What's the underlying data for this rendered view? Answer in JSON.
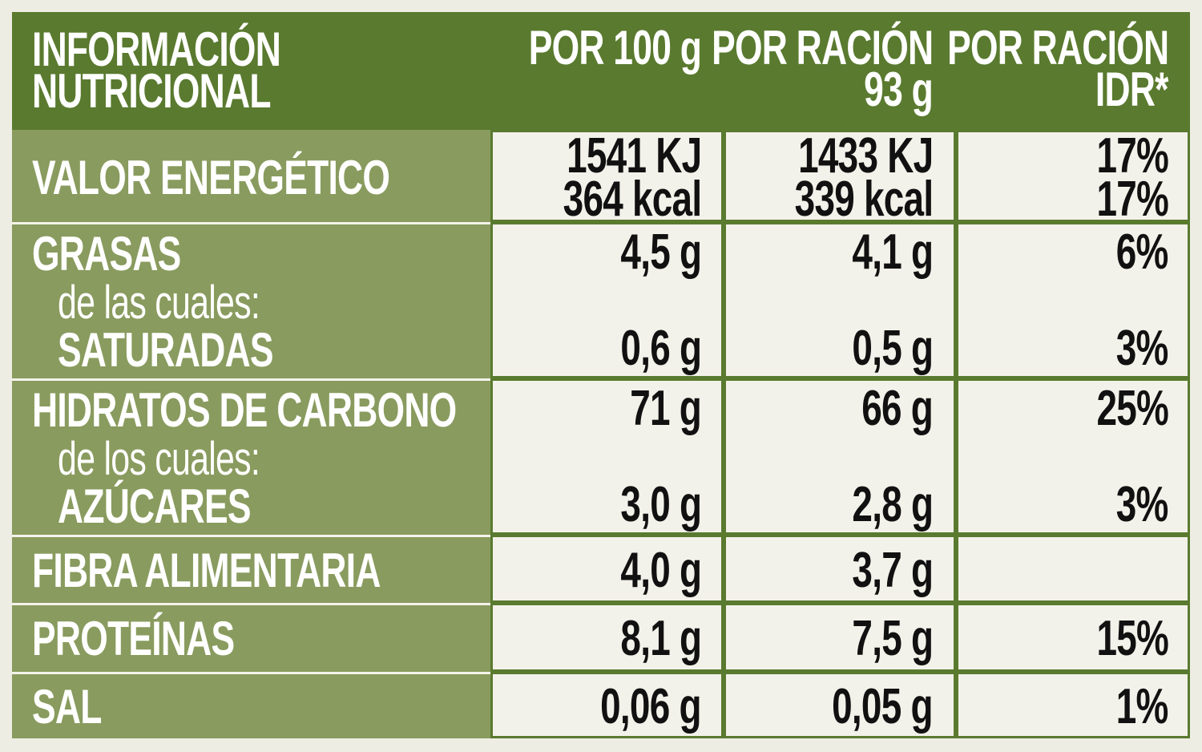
{
  "header": {
    "title": [
      "INFORMACIÓN",
      "NUTRICIONAL"
    ],
    "columns": [
      [
        "POR 100 g"
      ],
      [
        "POR RACIÓN",
        "93 g"
      ],
      [
        "POR RACIÓN",
        "IDR*"
      ]
    ]
  },
  "rows": [
    {
      "label": "VALOR ENERGÉTICO",
      "values": [
        [
          "1541 KJ",
          "364 kcal"
        ],
        [
          "1433 KJ",
          "339 kcal"
        ],
        [
          "17%",
          "17%"
        ]
      ]
    },
    {
      "label": "GRASAS",
      "values": [
        [
          "4,5 g"
        ],
        [
          "4,1 g"
        ],
        [
          "6%"
        ]
      ],
      "sub": {
        "intro": "de las cuales:",
        "label": "SATURADAS",
        "values": [
          "0,6 g",
          "0,5 g",
          "3%"
        ]
      }
    },
    {
      "label": "HIDRATOS DE CARBONO",
      "values": [
        [
          "71 g"
        ],
        [
          "66 g"
        ],
        [
          "25%"
        ]
      ],
      "sub": {
        "intro": "de los cuales:",
        "label": "AZÚCARES",
        "values": [
          "3,0 g",
          "2,8 g",
          "3%"
        ]
      }
    },
    {
      "label": "FIBRA ALIMENTARIA",
      "values": [
        [
          "4,0 g"
        ],
        [
          "3,7 g"
        ]
      ]
    },
    {
      "label": "PROTEÍNAS",
      "values": [
        [
          "8,1 g"
        ],
        [
          "7,5 g"
        ],
        [
          "15%"
        ]
      ]
    },
    {
      "label": "SAL",
      "values": [
        [
          "0,06 g"
        ],
        [
          "0,05 g"
        ],
        [
          "1%"
        ]
      ]
    }
  ]
}
